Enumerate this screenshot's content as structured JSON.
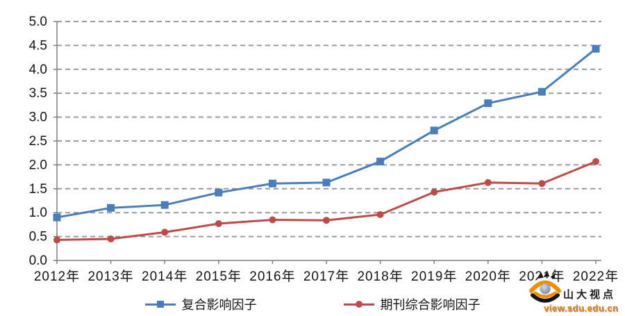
{
  "chart_data": {
    "type": "line",
    "title": "",
    "categories": [
      "2012年",
      "2013年",
      "2014年",
      "2015年",
      "2016年",
      "2017年",
      "2018年",
      "2019年",
      "2020年",
      "2021年",
      "2022年"
    ],
    "series": [
      {
        "name": "复合影响因子",
        "marker": "square",
        "color": "#4A7EBB",
        "values": [
          0.9,
          1.1,
          1.16,
          1.42,
          1.61,
          1.63,
          2.07,
          2.72,
          3.29,
          3.53,
          4.43
        ]
      },
      {
        "name": "期刊综合影响因子",
        "marker": "circle",
        "color": "#BE4B48",
        "values": [
          0.43,
          0.45,
          0.59,
          0.77,
          0.85,
          0.84,
          0.96,
          1.43,
          1.63,
          1.61,
          2.07
        ]
      }
    ],
    "xlabel": "",
    "ylabel": "",
    "ylim": [
      0,
      5
    ],
    "y_tick_step": 0.5,
    "y_ticks": [
      "0.0",
      "0.5",
      "1.0",
      "1.5",
      "2.0",
      "2.5",
      "3.0",
      "3.5",
      "4.0",
      "4.5",
      "5.0"
    ],
    "grid": "horizontal-dashed",
    "gridline_color": "#9a9a9a",
    "axis_color": "#7f7f7f",
    "legend_position": "bottom"
  },
  "watermark": {
    "name": "山大视点",
    "url": "view.sdu.edu.cn",
    "colors": {
      "orange": "#F28C00",
      "pupil_light": "#D3DAE8",
      "pupil_dark": "#68799F",
      "black": "#161616",
      "url_orange": "#ED7D00"
    }
  }
}
